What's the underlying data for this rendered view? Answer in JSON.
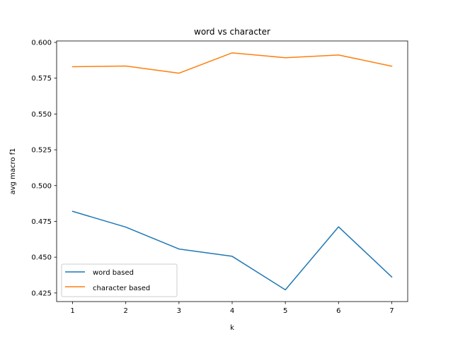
{
  "chart_data": {
    "type": "line",
    "title": "word vs character",
    "xlabel": "k",
    "ylabel": "avg macro f1",
    "x": [
      1,
      2,
      3,
      4,
      5,
      6,
      7
    ],
    "xlim": [
      0.7,
      7.3
    ],
    "ylim": [
      0.419,
      0.601
    ],
    "yticks": [
      0.425,
      0.45,
      0.475,
      0.5,
      0.525,
      0.55,
      0.575,
      0.6
    ],
    "ytick_labels": [
      "0.425",
      "0.450",
      "0.475",
      "0.500",
      "0.525",
      "0.550",
      "0.575",
      "0.600"
    ],
    "xticks": [
      1,
      2,
      3,
      4,
      5,
      6,
      7
    ],
    "xtick_labels": [
      "1",
      "2",
      "3",
      "4",
      "5",
      "6",
      "7"
    ],
    "series": [
      {
        "name": "word based",
        "color": "#1f77b4",
        "values": [
          0.482,
          0.471,
          0.4557,
          0.4506,
          0.4272,
          0.4712,
          0.4362
        ]
      },
      {
        "name": "character based",
        "color": "#ff7f0e",
        "values": [
          0.583,
          0.5835,
          0.5785,
          0.5927,
          0.5893,
          0.5912,
          0.5834
        ]
      }
    ],
    "grid": false,
    "legend_position": "lower-left"
  }
}
